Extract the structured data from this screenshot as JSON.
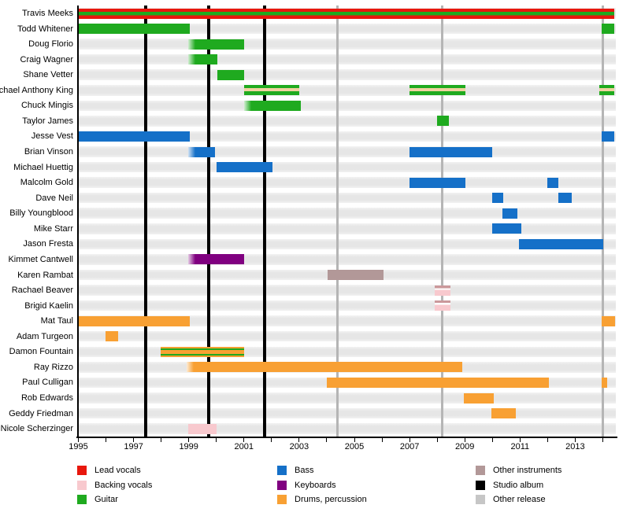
{
  "colors": {
    "lead_vocals": "#e8170d",
    "backing_vocals": "#f8c9ce",
    "backing_dark": "#cb989b",
    "guitar": "#1faa1f",
    "bass": "#1570c8",
    "keyboards": "#800080",
    "drums": "#f8a033",
    "other_instruments": "#b29898",
    "studio_album": "#000000",
    "other_release": "#c6c6c6",
    "tan_stripe": "#f0d2a0",
    "gridline_gray": "#b5b5b5"
  },
  "chart_data": {
    "type": "timeline-gantt",
    "x_axis": {
      "start": 1995,
      "end": 2014.47,
      "labeled_ticks": [
        1995,
        1997,
        1999,
        2001,
        2003,
        2005,
        2007,
        2009,
        2011,
        2013
      ],
      "minor_tick_first": 1995,
      "minor_tick_last": 2014,
      "minor_tick_step": 1
    },
    "studio_album_lines": [
      1997.44,
      1999.72,
      2001.75
    ],
    "other_release_lines": [
      2004.4,
      2008.17,
      2013.99
    ],
    "members": [
      {
        "name": "Travis Meeks",
        "bars": [
          {
            "start": 1995.0,
            "end": 2014.42,
            "role": "lead_guitar"
          }
        ]
      },
      {
        "name": "Todd Whitener",
        "bars": [
          {
            "start": 1995.0,
            "end": 1999.04,
            "role": "guitar"
          },
          {
            "start": 2013.96,
            "end": 2014.42,
            "role": "guitar"
          }
        ]
      },
      {
        "name": "Doug Florio",
        "bars": [
          {
            "start": 1998.98,
            "end": 2001.0,
            "role": "guitar",
            "fade": true
          }
        ]
      },
      {
        "name": "Craig Wagner",
        "bars": [
          {
            "start": 1998.98,
            "end": 2000.04,
            "role": "guitar",
            "fade": true
          }
        ]
      },
      {
        "name": "Shane Vetter",
        "bars": [
          {
            "start": 2000.04,
            "end": 2001.0,
            "role": "guitar"
          }
        ]
      },
      {
        "name": "Michael Anthony King",
        "bars": [
          {
            "start": 2001.0,
            "end": 2003.0,
            "role": "guitar_tan"
          },
          {
            "start": 2007.0,
            "end": 2009.02,
            "role": "guitar_tan"
          },
          {
            "start": 2013.87,
            "end": 2014.42,
            "role": "guitar_tan"
          }
        ]
      },
      {
        "name": "Chuck Mingis",
        "bars": [
          {
            "start": 2001.0,
            "end": 2003.06,
            "role": "guitar",
            "fade": true
          }
        ]
      },
      {
        "name": "Taylor James",
        "bars": [
          {
            "start": 2008.0,
            "end": 2008.42,
            "role": "guitar"
          }
        ]
      },
      {
        "name": "Jesse Vest",
        "bars": [
          {
            "start": 1995.0,
            "end": 1999.04,
            "role": "bass"
          },
          {
            "start": 2013.96,
            "end": 2014.42,
            "role": "bass"
          }
        ]
      },
      {
        "name": "Brian Vinson",
        "bars": [
          {
            "start": 1998.98,
            "end": 1999.95,
            "role": "bass",
            "fade": true
          },
          {
            "start": 2007.0,
            "end": 2009.99,
            "role": "bass"
          }
        ]
      },
      {
        "name": "Michael Huettig",
        "bars": [
          {
            "start": 2000.0,
            "end": 2002.03,
            "role": "bass"
          }
        ]
      },
      {
        "name": "Malcolm Gold",
        "bars": [
          {
            "start": 2007.0,
            "end": 2009.02,
            "role": "bass"
          },
          {
            "start": 2011.99,
            "end": 2012.39,
            "role": "bass"
          }
        ]
      },
      {
        "name": "Dave Neil",
        "bars": [
          {
            "start": 2009.99,
            "end": 2010.39,
            "role": "bass"
          },
          {
            "start": 2012.39,
            "end": 2012.87,
            "role": "bass"
          }
        ]
      },
      {
        "name": "Billy Youngblood",
        "bars": [
          {
            "start": 2010.36,
            "end": 2010.9,
            "role": "bass"
          }
        ]
      },
      {
        "name": "Mike Starr",
        "bars": [
          {
            "start": 2009.99,
            "end": 2011.05,
            "role": "bass"
          }
        ]
      },
      {
        "name": "Jason Fresta",
        "bars": [
          {
            "start": 2010.96,
            "end": 2014.02,
            "role": "bass"
          }
        ]
      },
      {
        "name": "Kimmet Cantwell",
        "bars": [
          {
            "start": 1998.98,
            "end": 2001.0,
            "role": "keyboards",
            "fade": true
          }
        ]
      },
      {
        "name": "Karen Rambat",
        "bars": [
          {
            "start": 2004.03,
            "end": 2006.06,
            "role": "other_instruments"
          }
        ]
      },
      {
        "name": "Rachael Beaver",
        "bars": [
          {
            "start": 2007.91,
            "end": 2008.48,
            "role": "backing_dash"
          }
        ]
      },
      {
        "name": "Brigid Kaelin",
        "bars": [
          {
            "start": 2007.91,
            "end": 2008.48,
            "role": "backing_dash"
          }
        ]
      },
      {
        "name": "Mat Taul",
        "bars": [
          {
            "start": 1995.0,
            "end": 1999.04,
            "role": "drums"
          },
          {
            "start": 2013.96,
            "end": 2014.44,
            "role": "drums"
          }
        ]
      },
      {
        "name": "Adam Turgeon",
        "bars": [
          {
            "start": 1995.98,
            "end": 1996.44,
            "role": "drums"
          }
        ]
      },
      {
        "name": "Damon Fountain",
        "bars": [
          {
            "start": 1997.98,
            "end": 2001.0,
            "role": "drums_guitar"
          }
        ]
      },
      {
        "name": "Ray Rizzo",
        "bars": [
          {
            "start": 1998.92,
            "end": 2008.91,
            "role": "drums",
            "fade": true
          }
        ]
      },
      {
        "name": "Paul Culligan",
        "bars": [
          {
            "start": 2004.0,
            "end": 2012.04,
            "role": "drums"
          },
          {
            "start": 2013.96,
            "end": 2014.16,
            "role": "drums"
          }
        ]
      },
      {
        "name": "Rob Edwards",
        "bars": [
          {
            "start": 2008.97,
            "end": 2010.05,
            "role": "drums"
          }
        ]
      },
      {
        "name": "Geddy Friedman",
        "bars": [
          {
            "start": 2009.97,
            "end": 2010.85,
            "role": "drums"
          }
        ]
      },
      {
        "name": "Nicole Scherzinger",
        "bars": [
          {
            "start": 1998.98,
            "end": 2000.0,
            "role": "backing_vocals"
          }
        ]
      }
    ],
    "legend": {
      "columns": [
        [
          {
            "label": "Lead vocals",
            "color": "lead_vocals"
          },
          {
            "label": "Backing vocals",
            "color": "backing_vocals"
          },
          {
            "label": "Guitar",
            "color": "guitar"
          }
        ],
        [
          {
            "label": "Bass",
            "color": "bass"
          },
          {
            "label": "Keyboards",
            "color": "keyboards"
          },
          {
            "label": "Drums, percussion",
            "color": "drums"
          }
        ],
        [
          {
            "label": "Other instruments",
            "color": "other_instruments"
          },
          {
            "label": "Studio album",
            "color": "studio_album"
          },
          {
            "label": "Other release",
            "color": "other_release"
          }
        ]
      ]
    }
  }
}
